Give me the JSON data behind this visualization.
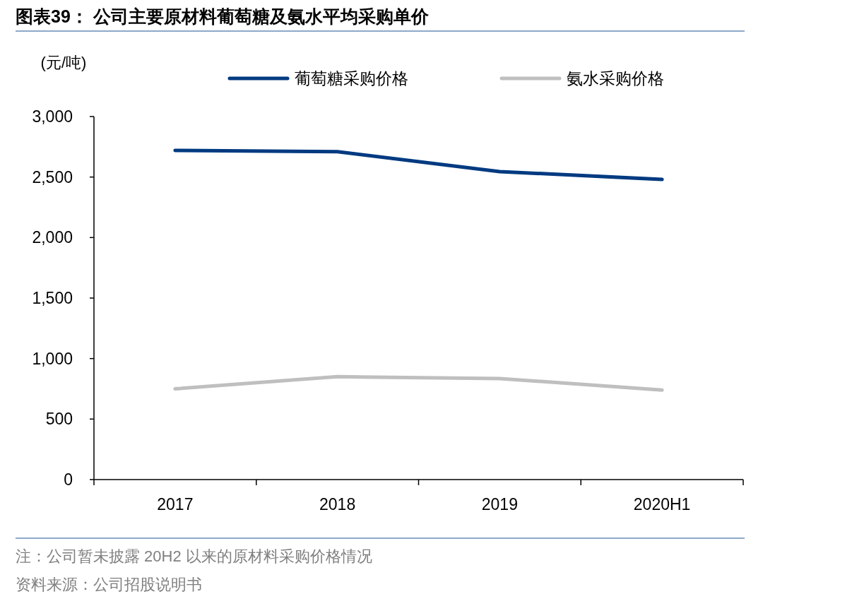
{
  "chart_data": {
    "type": "line",
    "title": "图表39：  公司主要原材料葡萄糖及氨水平均采购单价",
    "ylabel": "(元/吨)",
    "categories": [
      "2017",
      "2018",
      "2019",
      "2020H1"
    ],
    "series": [
      {
        "name": "葡萄糖采购价格",
        "color": "#003a80",
        "values": [
          2720,
          2710,
          2545,
          2480
        ]
      },
      {
        "name": "氨水采购价格",
        "color": "#bfbfbf",
        "values": [
          750,
          850,
          835,
          740
        ]
      }
    ],
    "ylim": [
      0,
      3000
    ],
    "yticks": [
      {
        "value": 0,
        "label": "0"
      },
      {
        "value": 500,
        "label": "500"
      },
      {
        "value": 1000,
        "label": "1,000"
      },
      {
        "value": 1500,
        "label": "1,500"
      },
      {
        "value": 2000,
        "label": "2,000"
      },
      {
        "value": 2500,
        "label": "2,500"
      },
      {
        "value": 3000,
        "label": "3,000"
      }
    ],
    "legend": "top",
    "grid": false,
    "marker": "none",
    "line_style": "solid",
    "annotations": [
      "注：公司暂未披露 20H2 以来的原材料采购价格情况",
      "资料来源：公司招股说明书"
    ]
  }
}
